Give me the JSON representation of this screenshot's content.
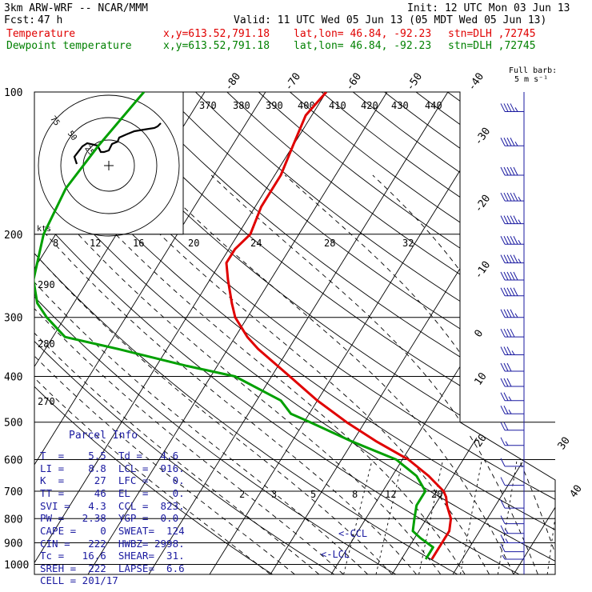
{
  "header": {
    "model": "3km ARW-WRF -- NCAR/MMM",
    "init": "Init: 12 UTC Mon 03 Jun 13",
    "fcst_label": "Fcst:",
    "fcst_value": "47 h",
    "valid": "Valid: 11 UTC Wed 05 Jun 13 (05 MDT Wed 05 Jun 13)",
    "temperature_label": "Temperature",
    "dewpoint_label": "Dewpoint temperature",
    "xy": "x,y=613.52,791.18",
    "latlon": "lat,lon= 46.84, -92.23",
    "station": "stn=DLH ,72745"
  },
  "barb_key": {
    "title": "Full barb:",
    "value": "5 m s⁻¹"
  },
  "colors": {
    "temperature": "#e00000",
    "dewpoint": "#00a000",
    "parcel_text": "#1a1aa0",
    "wind": "#1a1aa0"
  },
  "chart_data": {
    "type": "line",
    "title": "Skew-T log-P sounding",
    "pressure_levels": [
      "100",
      "200",
      "300",
      "400",
      "500",
      "600",
      "700",
      "800",
      "900",
      "1000"
    ],
    "skewed_isotherm_labels": [
      "-80",
      "-70",
      "-60",
      "-50",
      "-40",
      "-30",
      "-20",
      "-10",
      "0",
      "10",
      "20",
      "30",
      "40"
    ],
    "theta_e_labels": [
      "370",
      "380",
      "390",
      "400",
      "410",
      "420",
      "430",
      "440"
    ],
    "theta_labels": [
      "290",
      "280",
      "270"
    ],
    "mixing_ratio_labels": [
      "2",
      "3",
      "5",
      "8",
      "12",
      "20"
    ],
    "hodograph": {
      "speed_axis_label": "kts",
      "speed_ticks": [
        "8",
        "12",
        "16",
        "20",
        "24",
        "28",
        "32"
      ],
      "ring_labels": [
        "75",
        "50",
        "25"
      ]
    },
    "lcl_label": "<-LCL",
    "ccl_label": "<-CCL",
    "series": [
      {
        "name": "Temperature",
        "points": [
          [
            100,
            -60
          ],
          [
            112,
            -61
          ],
          [
            130,
            -60
          ],
          [
            150,
            -59
          ],
          [
            175,
            -59
          ],
          [
            200,
            -58
          ],
          [
            215,
            -59
          ],
          [
            230,
            -59
          ],
          [
            250,
            -57
          ],
          [
            280,
            -54
          ],
          [
            300,
            -52
          ],
          [
            330,
            -48
          ],
          [
            350,
            -45
          ],
          [
            400,
            -37
          ],
          [
            450,
            -30
          ],
          [
            500,
            -23
          ],
          [
            550,
            -16
          ],
          [
            600,
            -9
          ],
          [
            650,
            -4
          ],
          [
            700,
            0
          ],
          [
            720,
            1
          ],
          [
            750,
            2
          ],
          [
            800,
            4
          ],
          [
            850,
            5
          ],
          [
            900,
            5
          ],
          [
            950,
            5
          ],
          [
            975,
            5
          ]
        ]
      },
      {
        "name": "Dewpoint temperature",
        "points": [
          [
            100,
            -90
          ],
          [
            130,
            -92
          ],
          [
            160,
            -93
          ],
          [
            200,
            -92
          ],
          [
            250,
            -89
          ],
          [
            280,
            -86
          ],
          [
            300,
            -83
          ],
          [
            330,
            -78
          ],
          [
            350,
            -68
          ],
          [
            380,
            -55
          ],
          [
            400,
            -46
          ],
          [
            450,
            -36
          ],
          [
            480,
            -33
          ],
          [
            500,
            -29
          ],
          [
            550,
            -20
          ],
          [
            600,
            -11
          ],
          [
            650,
            -6
          ],
          [
            700,
            -3
          ],
          [
            750,
            -3
          ],
          [
            800,
            -2
          ],
          [
            850,
            -1
          ],
          [
            880,
            1
          ],
          [
            920,
            4
          ],
          [
            950,
            4
          ],
          [
            975,
            4
          ]
        ]
      }
    ],
    "wind_profile": [
      {
        "p": 110,
        "dir": 270,
        "spd": 45
      },
      {
        "p": 130,
        "dir": 270,
        "spd": 45
      },
      {
        "p": 150,
        "dir": 270,
        "spd": 50
      },
      {
        "p": 170,
        "dir": 265,
        "spd": 55
      },
      {
        "p": 190,
        "dir": 265,
        "spd": 55
      },
      {
        "p": 210,
        "dir": 260,
        "spd": 55
      },
      {
        "p": 230,
        "dir": 260,
        "spd": 55
      },
      {
        "p": 250,
        "dir": 260,
        "spd": 50
      },
      {
        "p": 270,
        "dir": 260,
        "spd": 50
      },
      {
        "p": 300,
        "dir": 255,
        "spd": 45
      },
      {
        "p": 330,
        "dir": 255,
        "spd": 40
      },
      {
        "p": 360,
        "dir": 255,
        "spd": 35
      },
      {
        "p": 390,
        "dir": 255,
        "spd": 30
      },
      {
        "p": 420,
        "dir": 250,
        "spd": 30
      },
      {
        "p": 450,
        "dir": 250,
        "spd": 25
      },
      {
        "p": 480,
        "dir": 250,
        "spd": 25
      },
      {
        "p": 520,
        "dir": 250,
        "spd": 20
      },
      {
        "p": 560,
        "dir": 245,
        "spd": 15
      },
      {
        "p": 620,
        "dir": 240,
        "spd": 10
      },
      {
        "p": 680,
        "dir": 225,
        "spd": 10
      },
      {
        "p": 760,
        "dir": 200,
        "spd": 10
      },
      {
        "p": 820,
        "dir": 190,
        "spd": 10
      },
      {
        "p": 860,
        "dir": 190,
        "spd": 15
      },
      {
        "p": 900,
        "dir": 190,
        "spd": 15
      },
      {
        "p": 940,
        "dir": 180,
        "spd": 10
      },
      {
        "p": 975,
        "dir": 170,
        "spd": 5
      }
    ]
  },
  "parcel_info": {
    "title": "Parcel Info",
    "rows": [
      "T  =    5.5  Td =   4.6",
      "LI =    8.8  LCL =  916.",
      "K  =     27  LFC =    0.",
      "TT =     46  EL  =    0.",
      "SVI =   4.3  CCL =  823.",
      "PW =   2.38  YGP =  0.0",
      "CAPE =    0  SWEAT=  124",
      "CIN =   222  HWBZ= 2998.",
      "Tc =   16.6  SHEAR=  31.",
      "SREH =  222  LAPSE=  6.6",
      "CELL = 201/17"
    ]
  }
}
